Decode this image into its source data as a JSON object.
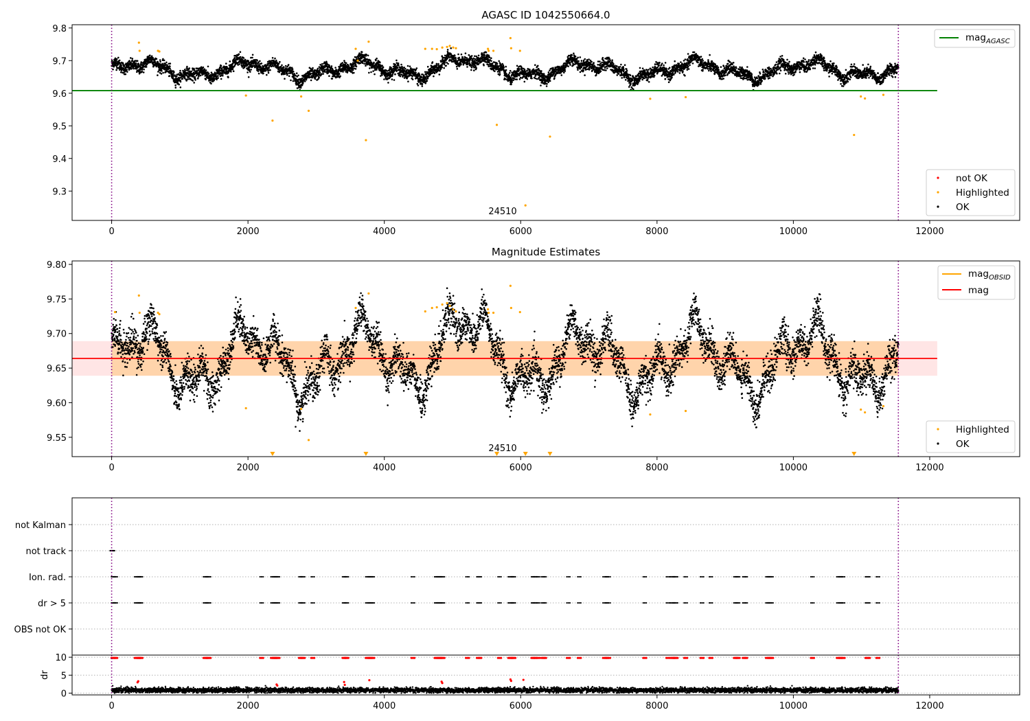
{
  "chart_data": [
    {
      "type": "scatter",
      "title": "AGASC ID 1042550664.0",
      "xlabel": "",
      "ylabel": "",
      "xlim": [
        -580,
        13320
      ],
      "ylim": [
        9.21,
        9.81
      ],
      "x_ticks": [
        0,
        2000,
        4000,
        6000,
        8000,
        10000,
        12000
      ],
      "x_tick_labels": [
        "0",
        "2000",
        "4000",
        "6000",
        "8000",
        "10000",
        "12000"
      ],
      "y_ticks": [
        9.3,
        9.4,
        9.5,
        9.6,
        9.7,
        9.8
      ],
      "y_tick_labels": [
        "9.3",
        "9.4",
        "9.5",
        "9.6",
        "9.7",
        "9.8"
      ],
      "obsid_boundaries": [
        0,
        11540
      ],
      "obsid_label": {
        "text": "24510",
        "x": 5770,
        "y": 9.23
      },
      "mag_agasc": {
        "name": "mag_AGASC",
        "label_main": "mag",
        "label_sub": "AGASC",
        "value": 9.608,
        "x_range": [
          -580,
          12110
        ],
        "color": "#008000"
      },
      "series_ok": {
        "name": "OK",
        "color": "#000000",
        "n_points": 6000,
        "x_range": [
          0,
          11540
        ]
      },
      "series_highlighted": {
        "name": "Highlighted",
        "color": "#FFA500",
        "points": [
          [
            400,
            9.755
          ],
          [
            410,
            9.73
          ],
          [
            680,
            9.73
          ],
          [
            700,
            9.728
          ],
          [
            1970,
            9.593
          ],
          [
            2360,
            9.516
          ],
          [
            2780,
            9.59
          ],
          [
            2890,
            9.546
          ],
          [
            3580,
            9.736
          ],
          [
            3730,
            9.456
          ],
          [
            3770,
            9.758
          ],
          [
            3610,
            9.7
          ],
          [
            4600,
            9.736
          ],
          [
            4700,
            9.736
          ],
          [
            4770,
            9.735
          ],
          [
            4850,
            9.74
          ],
          [
            4920,
            9.742
          ],
          [
            4960,
            9.745
          ],
          [
            5010,
            9.74
          ],
          [
            5050,
            9.738
          ],
          [
            5520,
            9.736
          ],
          [
            5530,
            9.73
          ],
          [
            5600,
            9.73
          ],
          [
            5650,
            9.503
          ],
          [
            5850,
            9.769
          ],
          [
            5860,
            9.738
          ],
          [
            5990,
            9.73
          ],
          [
            6070,
            9.256
          ],
          [
            6430,
            9.467
          ],
          [
            7900,
            9.583
          ],
          [
            8420,
            9.588
          ],
          [
            10890,
            9.472
          ],
          [
            10990,
            9.59
          ],
          [
            11050,
            9.584
          ],
          [
            11320,
            9.595
          ]
        ]
      },
      "series_not_ok": {
        "name": "not OK",
        "color": "#FF0000",
        "points": []
      },
      "legend_top": {
        "items": [
          "mag_AGASC"
        ],
        "placement": "upper right"
      },
      "legend_bottom": {
        "items": [
          "not OK",
          "Highlighted",
          "OK"
        ],
        "placement": "lower right"
      }
    },
    {
      "type": "scatter",
      "title": "Magnitude Estimates",
      "xlabel": "",
      "ylabel": "",
      "xlim": [
        -580,
        13320
      ],
      "ylim": [
        9.522,
        9.805
      ],
      "x_ticks": [
        0,
        2000,
        4000,
        6000,
        8000,
        10000,
        12000
      ],
      "x_tick_labels": [
        "0",
        "2000",
        "4000",
        "6000",
        "8000",
        "10000",
        "12000"
      ],
      "y_ticks": [
        9.55,
        9.6,
        9.65,
        9.7,
        9.75,
        9.8
      ],
      "y_tick_labels": [
        "9.55",
        "9.60",
        "9.65",
        "9.70",
        "9.75",
        "9.80"
      ],
      "obsid_boundaries": [
        0,
        11540
      ],
      "obsid_label": {
        "text": "24510",
        "x": 5770,
        "y": 9.532
      },
      "mag": {
        "name": "mag",
        "value": 9.664,
        "x_range": [
          -580,
          12110
        ],
        "color": "#FF0000"
      },
      "mag_band": {
        "low": 9.639,
        "high": 9.689,
        "x_range": [
          -580,
          12110
        ],
        "color": "#FF8888"
      },
      "mag_obsid": {
        "name": "mag_OBSID",
        "label_main": "mag",
        "label_sub": "OBSID",
        "value": 9.664,
        "low": 9.639,
        "high": 9.689,
        "x_range": [
          0,
          11540
        ],
        "color": "#FFA500"
      },
      "series_ok": {
        "name": "OK",
        "color": "#000000",
        "n_points": 6000,
        "x_range": [
          0,
          11540
        ]
      },
      "series_highlighted": {
        "name": "Highlighted",
        "color": "#FFA500",
        "points": [
          [
            50,
            9.731
          ],
          [
            400,
            9.755
          ],
          [
            410,
            9.73
          ],
          [
            680,
            9.73
          ],
          [
            700,
            9.728
          ],
          [
            1970,
            9.592
          ],
          [
            2780,
            9.591
          ],
          [
            2890,
            9.546
          ],
          [
            3580,
            9.737
          ],
          [
            3770,
            9.758
          ],
          [
            4600,
            9.732
          ],
          [
            4700,
            9.737
          ],
          [
            4770,
            9.738
          ],
          [
            4850,
            9.742
          ],
          [
            4920,
            9.744
          ],
          [
            4960,
            9.74
          ],
          [
            5010,
            9.735
          ],
          [
            5050,
            9.732
          ],
          [
            5520,
            9.735
          ],
          [
            5530,
            9.73
          ],
          [
            5600,
            9.73
          ],
          [
            5850,
            9.769
          ],
          [
            5860,
            9.737
          ],
          [
            5990,
            9.731
          ],
          [
            7900,
            9.583
          ],
          [
            8420,
            9.588
          ],
          [
            10990,
            9.59
          ],
          [
            11050,
            9.586
          ],
          [
            11320,
            9.595
          ]
        ]
      },
      "clipped_markers": {
        "x": [
          2360,
          3730,
          5650,
          6070,
          6430,
          10890
        ],
        "color": "#FFA500"
      },
      "legend_top": {
        "items": [
          "mag_OBSID",
          "mag"
        ],
        "placement": "upper right"
      },
      "legend_bottom": {
        "items": [
          "Highlighted",
          "OK"
        ],
        "placement": "lower right"
      }
    },
    {
      "type": "scatter",
      "title": "",
      "xlim": [
        -580,
        13320
      ],
      "categories": [
        "not Kalman",
        "not track",
        "Ion. rad.",
        "dr > 5",
        "OBS not OK"
      ],
      "obsid_boundaries": [
        0,
        11540
      ],
      "flags": {
        "not Kalman": [],
        "not track": [
          0,
          10,
          20
        ],
        "Ion. rad.": [
          20,
          40,
          60,
          360,
          380,
          400,
          410,
          430,
          1370,
          1390,
          1410,
          1430,
          2200,
          2360,
          2380,
          2400,
          2420,
          2440,
          2770,
          2790,
          2810,
          2950,
          3410,
          3430,
          3450,
          3750,
          3770,
          3790,
          3810,
          3830,
          4420,
          4760,
          4780,
          4800,
          4820,
          4840,
          4860,
          5220,
          5380,
          5400,
          5690,
          5840,
          5860,
          5880,
          5900,
          6180,
          6200,
          6220,
          6260,
          6330,
          6350,
          6700,
          6860,
          7230,
          7260,
          7290,
          7820,
          8160,
          8220,
          8240,
          8260,
          8280,
          8420,
          8660,
          8790,
          9150,
          9170,
          9190,
          9280,
          9300,
          9620,
          9640,
          9660,
          9680,
          10280,
          10660,
          10680,
          10700,
          10730,
          11080,
          11100,
          11240
        ],
        "dr > 5": [
          20,
          40,
          60,
          360,
          380,
          400,
          410,
          430,
          1370,
          1390,
          1410,
          1430,
          2200,
          2360,
          2380,
          2400,
          2420,
          2440,
          2770,
          2790,
          2810,
          2950,
          3410,
          3430,
          3450,
          3750,
          3770,
          3790,
          3810,
          3830,
          4420,
          4760,
          4780,
          4800,
          4820,
          4840,
          4860,
          5220,
          5380,
          5400,
          5690,
          5840,
          5860,
          5880,
          5900,
          6180,
          6200,
          6220,
          6260,
          6330,
          6350,
          6700,
          6860,
          7230,
          7260,
          7290,
          7820,
          8160,
          8220,
          8240,
          8260,
          8280,
          8420,
          8660,
          8790,
          9150,
          9170,
          9190,
          9280,
          9300,
          9620,
          9640,
          9660,
          9680,
          10280,
          10660,
          10680,
          10700,
          10730,
          11080,
          11100,
          11240
        ],
        "OBS not OK": []
      }
    },
    {
      "type": "scatter",
      "title": "",
      "ylabel": "dr",
      "xlim": [
        -580,
        13320
      ],
      "ylim": [
        -0.5,
        10.6
      ],
      "x_ticks": [
        0,
        2000,
        4000,
        6000,
        8000,
        10000,
        12000
      ],
      "x_tick_labels": [
        "0",
        "2000",
        "4000",
        "6000",
        "8000",
        "10000",
        "12000"
      ],
      "y_ticks": [
        0,
        5,
        10
      ],
      "y_tick_labels": [
        "0",
        "5",
        "10"
      ],
      "obsid_boundaries": [
        0,
        11540
      ],
      "dr_ok": {
        "color": "#000000",
        "n_points": 6000,
        "typical": [
          0.2,
          1.6
        ]
      },
      "dr_high": {
        "color": "#FF0000",
        "points": [
          [
            380,
            3.0
          ],
          [
            390,
            3.3
          ],
          [
            3410,
            3.1
          ],
          [
            3420,
            2.3
          ],
          [
            3780,
            3.6
          ],
          [
            4840,
            3.2
          ],
          [
            4850,
            2.8
          ],
          [
            5850,
            3.8
          ],
          [
            5860,
            3.4
          ],
          [
            6040,
            3.7
          ],
          [
            2420,
            2.4
          ],
          [
            2430,
            2.1
          ]
        ]
      },
      "dr_clipped": {
        "color": "#FF0000",
        "value": 9.8
      }
    }
  ]
}
